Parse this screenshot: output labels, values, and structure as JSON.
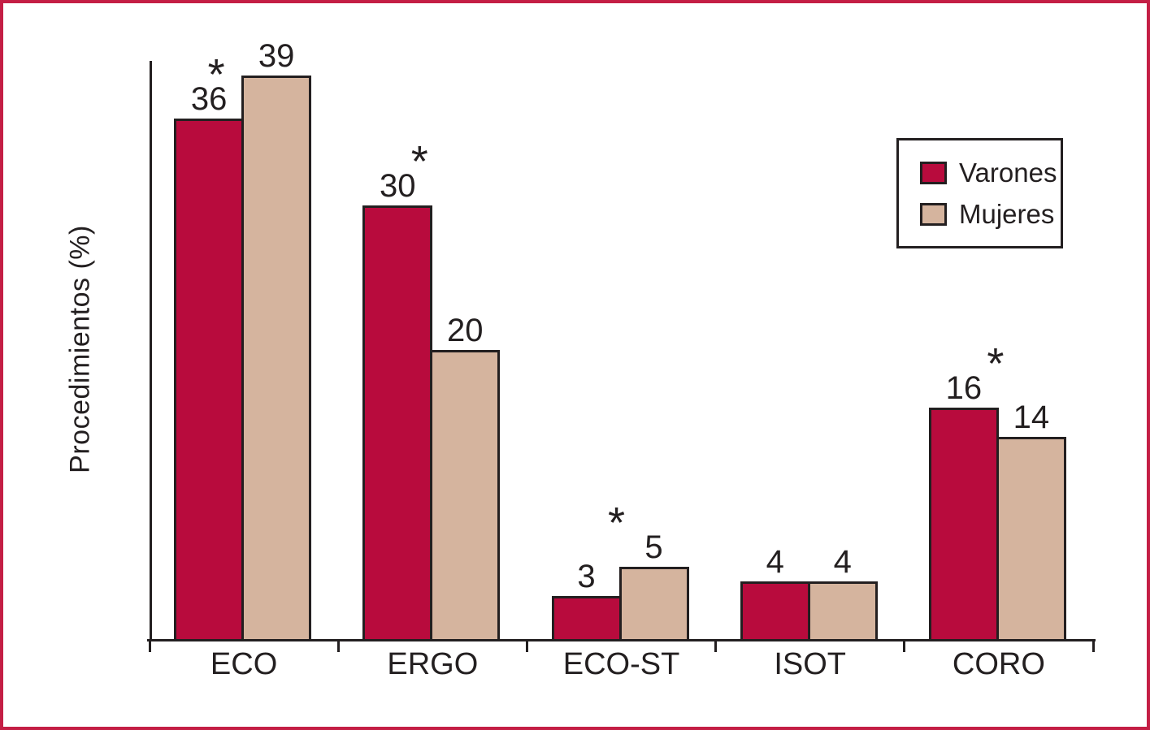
{
  "figure": {
    "border_color": "#c41f45",
    "background": "#ffffff",
    "ink_color": "#231f20"
  },
  "chart_data": {
    "type": "bar",
    "title": "",
    "xlabel": "",
    "ylabel": "Procedimientos (%)",
    "categories": [
      "ECO",
      "ERGO",
      "ECO-ST",
      "ISOT",
      "CORO"
    ],
    "series": [
      {
        "name": "Varones",
        "color": "#b80b3d",
        "values": [
          36,
          30,
          3,
          4,
          16
        ]
      },
      {
        "name": "Mujeres",
        "color": "#d5b49e",
        "values": [
          39,
          20,
          5,
          4,
          14
        ]
      }
    ],
    "ylim": [
      0,
      40
    ],
    "grid": false,
    "y_tick_labels_shown": false,
    "legend_position": "top-right",
    "annotations": [
      {
        "category": "ECO",
        "series": "Varones",
        "symbol": "*"
      },
      {
        "category": "ERGO",
        "series": "Varones",
        "symbol": "*"
      },
      {
        "category": "ECO-ST",
        "series": "Mujeres",
        "symbol": "*"
      },
      {
        "category": "CORO",
        "series": "Varones",
        "symbol": "*"
      }
    ]
  }
}
